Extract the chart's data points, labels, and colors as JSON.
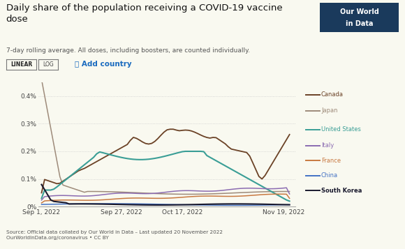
{
  "title": "Daily share of the population receiving a COVID-19 vaccine\ndose",
  "subtitle": "7-day rolling average. All doses, including boosters, are counted individually.",
  "source": "Source: Official data collated by Our World in Data – Last updated 20 November 2022\nOurWorldInData.org/coronavirus • CC BY",
  "x_ticks": [
    "Sep 1, 2022",
    "Sep 27, 2022",
    "Oct 17, 2022",
    "Nov 19, 2022"
  ],
  "ylim": [
    0,
    0.0045
  ],
  "countries": [
    "Canada",
    "Japan",
    "United States",
    "Italy",
    "France",
    "China",
    "South Korea"
  ],
  "colors": {
    "Canada": "#6B4226",
    "Japan": "#9E8B7A",
    "United States": "#3A9E96",
    "Italy": "#8B6BB1",
    "France": "#C87941",
    "China": "#4472C4",
    "South Korea": "#1a1a2e"
  },
  "linewidths": {
    "Canada": 1.3,
    "Japan": 1.1,
    "United States": 1.5,
    "Italy": 1.1,
    "France": 1.1,
    "China": 1.1,
    "South Korea": 1.5
  },
  "owid_box_color": "#1a3a5c",
  "background_color": "#f9f9f0",
  "plot_bg": "#f9f9f0"
}
